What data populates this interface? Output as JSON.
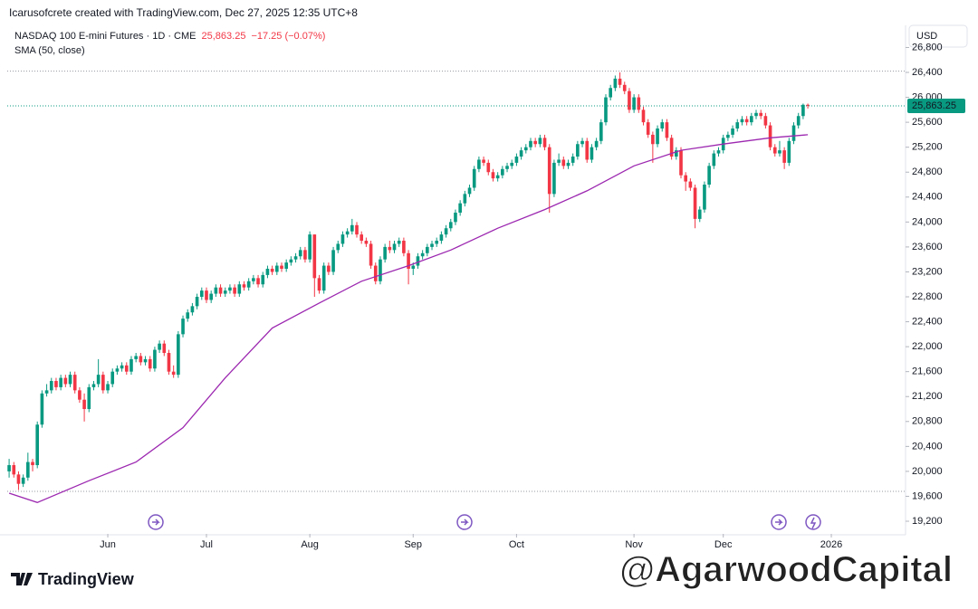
{
  "chart_data": {
    "type": "candlestick",
    "attribution": "Icarusofcrete created with TradingView.com, Dec 27, 2025 12:35 UTC+8",
    "title": "NASDAQ 100 E-mini Futures · 1D · CME",
    "last": "25,863.25",
    "change": "−17.25 (−0.07%)",
    "indicator": "SMA (50, close)",
    "currency": "USD",
    "brand": "TradingView",
    "watermark": "@AgarwoodCapital",
    "up_color": "#089981",
    "down_color": "#f23645",
    "xlim": [
      -0.4,
      190.8
    ],
    "ylim": [
      18997,
      27155
    ],
    "xticks": [
      {
        "value": 21,
        "label": "Jun"
      },
      {
        "value": 42,
        "label": "Jul"
      },
      {
        "value": 64,
        "label": "Aug"
      },
      {
        "value": 86,
        "label": "Sep"
      },
      {
        "value": 108,
        "label": "Oct"
      },
      {
        "value": 133,
        "label": "Nov"
      },
      {
        "value": 152,
        "label": "Dec"
      },
      {
        "value": 175,
        "label": "2026"
      }
    ],
    "yticks": [
      {
        "value": 19200,
        "label": "19,200"
      },
      {
        "value": 19600,
        "label": "19,600"
      },
      {
        "value": 20000,
        "label": "20,000"
      },
      {
        "value": 20400,
        "label": "20,400"
      },
      {
        "value": 20800,
        "label": "20,800"
      },
      {
        "value": 21200,
        "label": "21,200"
      },
      {
        "value": 21600,
        "label": "21,600"
      },
      {
        "value": 22000,
        "label": "22,000"
      },
      {
        "value": 22400,
        "label": "22,400"
      },
      {
        "value": 22800,
        "label": "22,800"
      },
      {
        "value": 23200,
        "label": "23,200"
      },
      {
        "value": 23600,
        "label": "23,600"
      },
      {
        "value": 24000,
        "label": "24,000"
      },
      {
        "value": 24400,
        "label": "24,400"
      },
      {
        "value": 24800,
        "label": "24,800"
      },
      {
        "value": 25200,
        "label": "25,200"
      },
      {
        "value": 25600,
        "label": "25,600"
      },
      {
        "value": 26000,
        "label": "26,000"
      },
      {
        "value": 26400,
        "label": "26,400"
      },
      {
        "value": 26800,
        "label": "26,800"
      }
    ],
    "dotted_levels": [
      26420,
      19680
    ],
    "ohlc": [
      [
        20000,
        20200,
        19900,
        20100
      ],
      [
        20100,
        20150,
        19900,
        19950
      ],
      [
        19950,
        20000,
        19700,
        19800
      ],
      [
        19800,
        19950,
        19750,
        19900
      ],
      [
        19900,
        20300,
        19850,
        20150
      ],
      [
        20150,
        20200,
        20000,
        20100
      ],
      [
        20100,
        20800,
        20050,
        20750
      ],
      [
        20750,
        21300,
        20700,
        21250
      ],
      [
        21250,
        21400,
        21200,
        21300
      ],
      [
        21300,
        21500,
        21250,
        21450
      ],
      [
        21450,
        21500,
        21300,
        21350
      ],
      [
        21350,
        21550,
        21300,
        21500
      ],
      [
        21500,
        21550,
        21350,
        21400
      ],
      [
        21400,
        21600,
        21350,
        21550
      ],
      [
        21550,
        21600,
        21250,
        21300
      ],
      [
        21300,
        21350,
        21100,
        21150
      ],
      [
        21150,
        21250,
        20800,
        21000
      ],
      [
        21000,
        21400,
        20950,
        21350
      ],
      [
        21350,
        21450,
        21300,
        21400
      ],
      [
        21400,
        21800,
        21350,
        21550
      ],
      [
        21550,
        21600,
        21250,
        21300
      ],
      [
        21300,
        21450,
        21250,
        21400
      ],
      [
        21400,
        21650,
        21350,
        21600
      ],
      [
        21600,
        21700,
        21550,
        21650
      ],
      [
        21650,
        21750,
        21600,
        21700
      ],
      [
        21700,
        21750,
        21550,
        21600
      ],
      [
        21600,
        21850,
        21550,
        21800
      ],
      [
        21800,
        21900,
        21750,
        21850
      ],
      [
        21850,
        21900,
        21700,
        21750
      ],
      [
        21750,
        21850,
        21700,
        21800
      ],
      [
        21800,
        21850,
        21600,
        21650
      ],
      [
        21650,
        22000,
        21600,
        21950
      ],
      [
        21950,
        22100,
        21900,
        22050
      ],
      [
        22050,
        22100,
        21850,
        21900
      ],
      [
        21900,
        21950,
        21550,
        21600
      ],
      [
        21600,
        21700,
        21500,
        21550
      ],
      [
        21550,
        22250,
        21500,
        22200
      ],
      [
        22200,
        22500,
        22150,
        22450
      ],
      [
        22450,
        22600,
        22400,
        22550
      ],
      [
        22550,
        22700,
        22500,
        22650
      ],
      [
        22650,
        22850,
        22600,
        22800
      ],
      [
        22800,
        22950,
        22750,
        22900
      ],
      [
        22900,
        22950,
        22700,
        22750
      ],
      [
        22750,
        22900,
        22700,
        22850
      ],
      [
        22850,
        23000,
        22800,
        22950
      ],
      [
        22950,
        23000,
        22800,
        22850
      ],
      [
        22850,
        22950,
        22800,
        22900
      ],
      [
        22900,
        23000,
        22850,
        22950
      ],
      [
        22950,
        23000,
        22800,
        22850
      ],
      [
        22850,
        23050,
        22800,
        23000
      ],
      [
        23000,
        23050,
        22900,
        22950
      ],
      [
        22950,
        23100,
        22900,
        23050
      ],
      [
        23050,
        23150,
        23000,
        23100
      ],
      [
        23100,
        23150,
        22950,
        23000
      ],
      [
        23000,
        23200,
        22950,
        23150
      ],
      [
        23150,
        23300,
        23100,
        23250
      ],
      [
        23250,
        23300,
        23150,
        23200
      ],
      [
        23200,
        23350,
        23150,
        23300
      ],
      [
        23300,
        23350,
        23200,
        23250
      ],
      [
        23250,
        23400,
        23200,
        23350
      ],
      [
        23350,
        23450,
        23300,
        23400
      ],
      [
        23400,
        23500,
        23350,
        23450
      ],
      [
        23450,
        23600,
        23400,
        23550
      ],
      [
        23550,
        23600,
        23350,
        23400
      ],
      [
        23400,
        23850,
        23350,
        23800
      ],
      [
        23800,
        23800,
        22800,
        23100
      ],
      [
        23100,
        23150,
        22850,
        22900
      ],
      [
        22900,
        23350,
        22850,
        23300
      ],
      [
        23300,
        23350,
        23150,
        23200
      ],
      [
        23200,
        23600,
        23150,
        23550
      ],
      [
        23550,
        23700,
        23500,
        23650
      ],
      [
        23650,
        23850,
        23600,
        23800
      ],
      [
        23800,
        23900,
        23750,
        23850
      ],
      [
        23850,
        24050,
        23800,
        23950
      ],
      [
        23950,
        24000,
        23750,
        23800
      ],
      [
        23800,
        23850,
        23650,
        23700
      ],
      [
        23700,
        23750,
        23600,
        23650
      ],
      [
        23650,
        23700,
        23250,
        23300
      ],
      [
        23300,
        23350,
        23000,
        23050
      ],
      [
        23050,
        23450,
        23000,
        23400
      ],
      [
        23400,
        23650,
        23350,
        23600
      ],
      [
        23600,
        23700,
        23500,
        23550
      ],
      [
        23550,
        23700,
        23500,
        23650
      ],
      [
        23650,
        23750,
        23600,
        23700
      ],
      [
        23700,
        23750,
        23450,
        23500
      ],
      [
        23500,
        23550,
        23000,
        23250
      ],
      [
        23250,
        23350,
        23150,
        23300
      ],
      [
        23300,
        23500,
        23250,
        23450
      ],
      [
        23450,
        23550,
        23400,
        23500
      ],
      [
        23500,
        23650,
        23450,
        23600
      ],
      [
        23600,
        23700,
        23550,
        23650
      ],
      [
        23650,
        23750,
        23600,
        23700
      ],
      [
        23700,
        23850,
        23650,
        23800
      ],
      [
        23800,
        23950,
        23750,
        23900
      ],
      [
        23900,
        24050,
        23850,
        24000
      ],
      [
        24000,
        24200,
        23950,
        24150
      ],
      [
        24150,
        24350,
        24100,
        24300
      ],
      [
        24300,
        24500,
        24250,
        24450
      ],
      [
        24450,
        24600,
        24400,
        24550
      ],
      [
        24550,
        24900,
        24500,
        24850
      ],
      [
        24850,
        25050,
        24800,
        25000
      ],
      [
        25000,
        25050,
        24900,
        24950
      ],
      [
        24950,
        25000,
        24750,
        24800
      ],
      [
        24800,
        24850,
        24650,
        24700
      ],
      [
        24700,
        24800,
        24650,
        24750
      ],
      [
        24750,
        24900,
        24700,
        24850
      ],
      [
        24850,
        24950,
        24800,
        24900
      ],
      [
        24900,
        25000,
        24850,
        24950
      ],
      [
        24950,
        25100,
        24900,
        25050
      ],
      [
        25050,
        25200,
        25000,
        25150
      ],
      [
        25150,
        25250,
        25100,
        25200
      ],
      [
        25200,
        25350,
        25150,
        25300
      ],
      [
        25300,
        25350,
        25200,
        25250
      ],
      [
        25250,
        25400,
        25200,
        25350
      ],
      [
        25350,
        25400,
        25150,
        25200
      ],
      [
        25200,
        25250,
        24150,
        24450
      ],
      [
        24450,
        25000,
        24400,
        24950
      ],
      [
        24950,
        25100,
        24900,
        25000
      ],
      [
        25000,
        25050,
        24850,
        24900
      ],
      [
        24900,
        25000,
        24850,
        24950
      ],
      [
        24950,
        25100,
        24900,
        25050
      ],
      [
        25050,
        25300,
        25000,
        25250
      ],
      [
        25250,
        25350,
        25200,
        25300
      ],
      [
        25300,
        25350,
        24950,
        25000
      ],
      [
        25000,
        25250,
        24950,
        25200
      ],
      [
        25200,
        25350,
        25150,
        25300
      ],
      [
        25300,
        25650,
        25250,
        25600
      ],
      [
        25600,
        26050,
        25550,
        26000
      ],
      [
        26000,
        26200,
        25950,
        26150
      ],
      [
        26150,
        26350,
        26100,
        26300
      ],
      [
        26300,
        26400,
        26150,
        26200
      ],
      [
        26200,
        26250,
        26050,
        26100
      ],
      [
        26100,
        26150,
        25750,
        25800
      ],
      [
        25800,
        26050,
        25750,
        26000
      ],
      [
        26000,
        26050,
        25750,
        25800
      ],
      [
        25800,
        25850,
        25550,
        25600
      ],
      [
        25600,
        25650,
        25350,
        25400
      ],
      [
        25400,
        25450,
        24950,
        25250
      ],
      [
        25250,
        25550,
        25200,
        25500
      ],
      [
        25500,
        25650,
        25450,
        25600
      ],
      [
        25600,
        25650,
        25300,
        25350
      ],
      [
        25350,
        25400,
        25000,
        25050
      ],
      [
        25050,
        25200,
        25000,
        25150
      ],
      [
        25150,
        25200,
        24700,
        24750
      ],
      [
        24750,
        24800,
        24500,
        24650
      ],
      [
        24650,
        24700,
        24500,
        24550
      ],
      [
        24550,
        24600,
        23900,
        24050
      ],
      [
        24050,
        24250,
        24000,
        24200
      ],
      [
        24200,
        24650,
        24150,
        24600
      ],
      [
        24600,
        24950,
        24550,
        24900
      ],
      [
        24900,
        25150,
        24850,
        25100
      ],
      [
        25100,
        25200,
        25050,
        25150
      ],
      [
        25150,
        25400,
        25100,
        25350
      ],
      [
        25350,
        25450,
        25300,
        25400
      ],
      [
        25400,
        25550,
        25350,
        25500
      ],
      [
        25500,
        25650,
        25450,
        25600
      ],
      [
        25600,
        25700,
        25550,
        25650
      ],
      [
        25650,
        25700,
        25550,
        25600
      ],
      [
        25600,
        25750,
        25550,
        25700
      ],
      [
        25700,
        25800,
        25650,
        25750
      ],
      [
        25750,
        25800,
        25650,
        25700
      ],
      [
        25700,
        25750,
        25500,
        25550
      ],
      [
        25550,
        25600,
        25150,
        25200
      ],
      [
        25200,
        25250,
        25050,
        25100
      ],
      [
        25100,
        25300,
        25050,
        25150
      ],
      [
        25150,
        25200,
        24850,
        24950
      ],
      [
        24950,
        25350,
        24900,
        25300
      ],
      [
        25300,
        25600,
        25250,
        25550
      ],
      [
        25550,
        25750,
        25500,
        25700
      ],
      [
        25700,
        25900,
        25650,
        25880.5
      ],
      [
        25880.5,
        25900,
        25820,
        25863.25
      ]
    ],
    "sma": {
      "color": "#9c27b0",
      "x": [
        0,
        6,
        17,
        27,
        37,
        46,
        56,
        66,
        75,
        85,
        94,
        104,
        114,
        123,
        133,
        143,
        152,
        162,
        170
      ],
      "values": [
        19650,
        19500,
        19850,
        20150,
        20700,
        21500,
        22300,
        22700,
        23050,
        23300,
        23550,
        23900,
        24200,
        24500,
        24900,
        25150,
        25250,
        25350,
        25400
      ]
    }
  }
}
